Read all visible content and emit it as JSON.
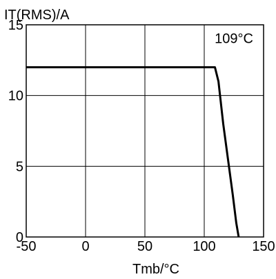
{
  "chart_data": {
    "type": "line",
    "title": "",
    "xlabel": "Tmb/°C",
    "ylabel": "IT(RMS)/A",
    "xlim": [
      -50,
      150
    ],
    "ylim": [
      0,
      15
    ],
    "x_ticks": [
      -50,
      0,
      50,
      100,
      150
    ],
    "y_ticks": [
      0,
      5,
      10,
      15
    ],
    "grid": true,
    "series": [
      {
        "points": [
          [
            -50,
            12
          ],
          [
            109,
            12
          ],
          [
            112,
            11
          ],
          [
            116,
            8
          ],
          [
            120,
            5.5
          ],
          [
            124,
            3
          ],
          [
            127,
            1
          ],
          [
            129,
            0
          ]
        ]
      }
    ],
    "annotations": [
      {
        "text": "109°C",
        "x": 125,
        "y": 13.7
      }
    ]
  }
}
